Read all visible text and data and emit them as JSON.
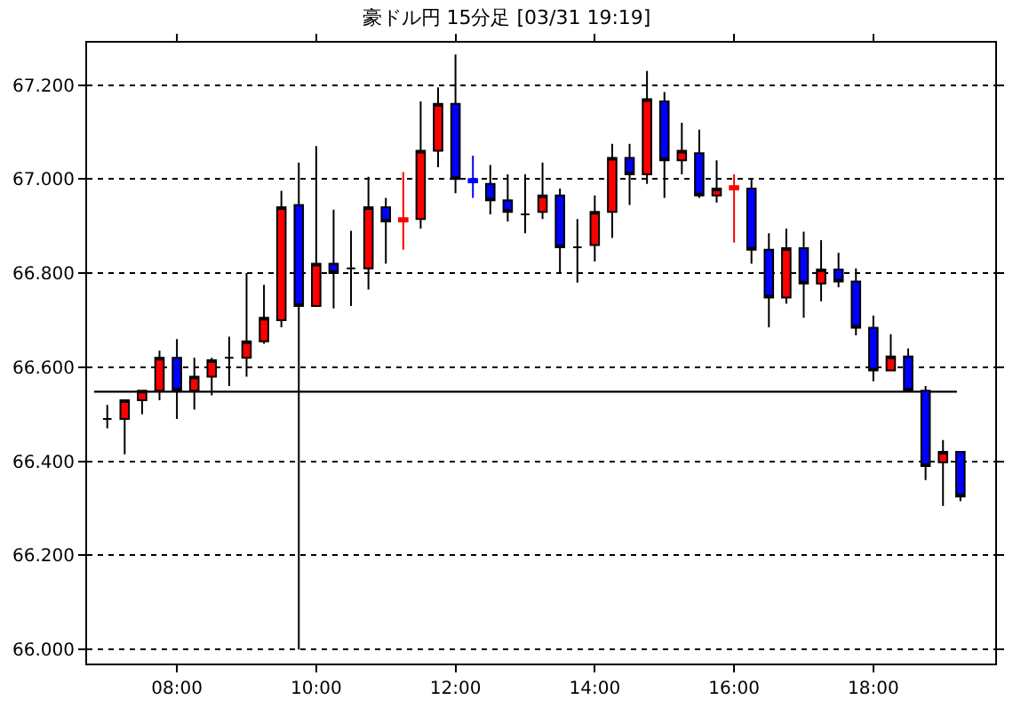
{
  "chart_data": {
    "type": "candlestick",
    "title": "豪ドル円 15分足 [03/31 19:19]",
    "x": [
      7.0,
      7.25,
      7.5,
      7.75,
      8.0,
      8.25,
      8.5,
      8.75,
      9.0,
      9.25,
      9.5,
      9.75,
      10.0,
      10.25,
      10.5,
      10.75,
      11.0,
      11.25,
      11.5,
      11.75,
      12.0,
      12.25,
      12.5,
      12.75,
      13.0,
      13.25,
      13.5,
      13.75,
      14.0,
      14.25,
      14.5,
      14.75,
      15.0,
      15.25,
      15.5,
      15.75,
      16.0,
      16.25,
      16.5,
      16.75,
      17.0,
      17.25,
      17.5,
      17.75,
      18.0,
      18.25,
      18.5,
      18.75,
      19.0,
      19.25
    ],
    "ohlc": [
      [
        66.49,
        66.52,
        66.47,
        66.49
      ],
      [
        66.49,
        66.53,
        66.415,
        66.53
      ],
      [
        66.53,
        66.55,
        66.5,
        66.55
      ],
      [
        66.55,
        66.635,
        66.53,
        66.62
      ],
      [
        66.62,
        66.66,
        66.49,
        66.55
      ],
      [
        66.55,
        66.62,
        66.51,
        66.58
      ],
      [
        66.58,
        66.62,
        66.54,
        66.615
      ],
      [
        66.62,
        66.665,
        66.56,
        66.62
      ],
      [
        66.62,
        66.8,
        66.58,
        66.655
      ],
      [
        66.655,
        66.775,
        66.65,
        66.705
      ],
      [
        66.7,
        66.975,
        66.685,
        66.94
      ],
      [
        66.945,
        67.035,
        66.0,
        66.73
      ],
      [
        66.73,
        67.07,
        66.73,
        66.82
      ],
      [
        66.82,
        66.935,
        66.725,
        66.8
      ],
      [
        66.81,
        66.89,
        66.73,
        66.81
      ],
      [
        66.81,
        67.005,
        66.765,
        66.94
      ],
      [
        66.94,
        66.96,
        66.82,
        66.91
      ],
      [
        66.91,
        67.015,
        66.85,
        66.917
      ],
      [
        66.915,
        67.165,
        66.895,
        67.06
      ],
      [
        67.06,
        67.195,
        67.025,
        67.16
      ],
      [
        67.16,
        67.265,
        66.97,
        67.0
      ],
      [
        67.0,
        67.05,
        66.96,
        66.993
      ],
      [
        66.99,
        67.03,
        66.925,
        66.955
      ],
      [
        66.955,
        67.01,
        66.91,
        66.93
      ],
      [
        66.925,
        67.01,
        66.885,
        66.925
      ],
      [
        66.93,
        67.035,
        66.915,
        66.965
      ],
      [
        66.965,
        66.98,
        66.8,
        66.855
      ],
      [
        66.855,
        66.915,
        66.78,
        66.855
      ],
      [
        66.86,
        66.965,
        66.825,
        66.93
      ],
      [
        66.93,
        67.075,
        66.875,
        67.045
      ],
      [
        67.045,
        67.075,
        66.945,
        67.01
      ],
      [
        67.01,
        67.23,
        66.99,
        67.17
      ],
      [
        67.165,
        67.185,
        66.96,
        67.04
      ],
      [
        67.04,
        67.12,
        67.01,
        67.06
      ],
      [
        67.055,
        67.105,
        66.96,
        66.965
      ],
      [
        66.965,
        67.04,
        66.95,
        66.98
      ],
      [
        66.978,
        67.01,
        66.865,
        66.985
      ],
      [
        66.98,
        67.0,
        66.82,
        66.85
      ],
      [
        66.85,
        66.885,
        66.685,
        66.748
      ],
      [
        66.748,
        66.895,
        66.735,
        66.853
      ],
      [
        66.853,
        66.888,
        66.705,
        66.778
      ],
      [
        66.778,
        66.87,
        66.74,
        66.808
      ],
      [
        66.808,
        66.843,
        66.77,
        66.782
      ],
      [
        66.782,
        66.81,
        66.668,
        66.684
      ],
      [
        66.684,
        66.71,
        66.57,
        66.593
      ],
      [
        66.593,
        66.67,
        66.593,
        66.623
      ],
      [
        66.623,
        66.64,
        66.548,
        66.55
      ],
      [
        66.55,
        66.56,
        66.36,
        66.39
      ],
      [
        66.398,
        66.445,
        66.305,
        66.42
      ],
      [
        66.42,
        66.42,
        66.315,
        66.325
      ]
    ],
    "colors": [
      "#000000",
      "#ff0000",
      "#ff0000",
      "#ff0000",
      "#0000ff",
      "#ff0000",
      "#ff0000",
      "#000000",
      "#ff0000",
      "#ff0000",
      "#ff0000",
      "#0000ff",
      "#ff0000",
      "#0000ff",
      "#000000",
      "#ff0000",
      "#0000ff",
      "#ff0000",
      "#ff0000",
      "#ff0000",
      "#0000ff",
      "#0000ff",
      "#0000ff",
      "#0000ff",
      "#000000",
      "#ff0000",
      "#0000ff",
      "#000000",
      "#ff0000",
      "#ff0000",
      "#0000ff",
      "#ff0000",
      "#0000ff",
      "#ff0000",
      "#0000ff",
      "#ff0000",
      "#ff0000",
      "#0000ff",
      "#0000ff",
      "#ff0000",
      "#0000ff",
      "#ff0000",
      "#0000ff",
      "#0000ff",
      "#0000ff",
      "#ff0000",
      "#0000ff",
      "#0000ff",
      "#ff0000",
      "#0000ff"
    ],
    "xlim": [
      6.71,
      19.75
    ],
    "xticks": [
      {
        "value": 8,
        "label": "08:00"
      },
      {
        "value": 10,
        "label": "10:00"
      },
      {
        "value": 12,
        "label": "12:00"
      },
      {
        "value": 14,
        "label": "14:00"
      },
      {
        "value": 16,
        "label": "16:00"
      },
      {
        "value": 18,
        "label": "18:00"
      }
    ],
    "ylim": [
      65.97,
      67.29
    ],
    "yticks": [
      {
        "value": 66.0,
        "label": "66.000"
      },
      {
        "value": 66.2,
        "label": "66.200"
      },
      {
        "value": 66.4,
        "label": "66.400"
      },
      {
        "value": 66.6,
        "label": "66.600"
      },
      {
        "value": 66.8,
        "label": "66.800"
      },
      {
        "value": 67.0,
        "label": "67.000"
      },
      {
        "value": 67.2,
        "label": "67.200"
      }
    ],
    "ref_lines": [
      {
        "axis": "y",
        "value": 66.548,
        "label": null,
        "color": "#000000",
        "line_style": "solid"
      }
    ],
    "grid": "y"
  }
}
